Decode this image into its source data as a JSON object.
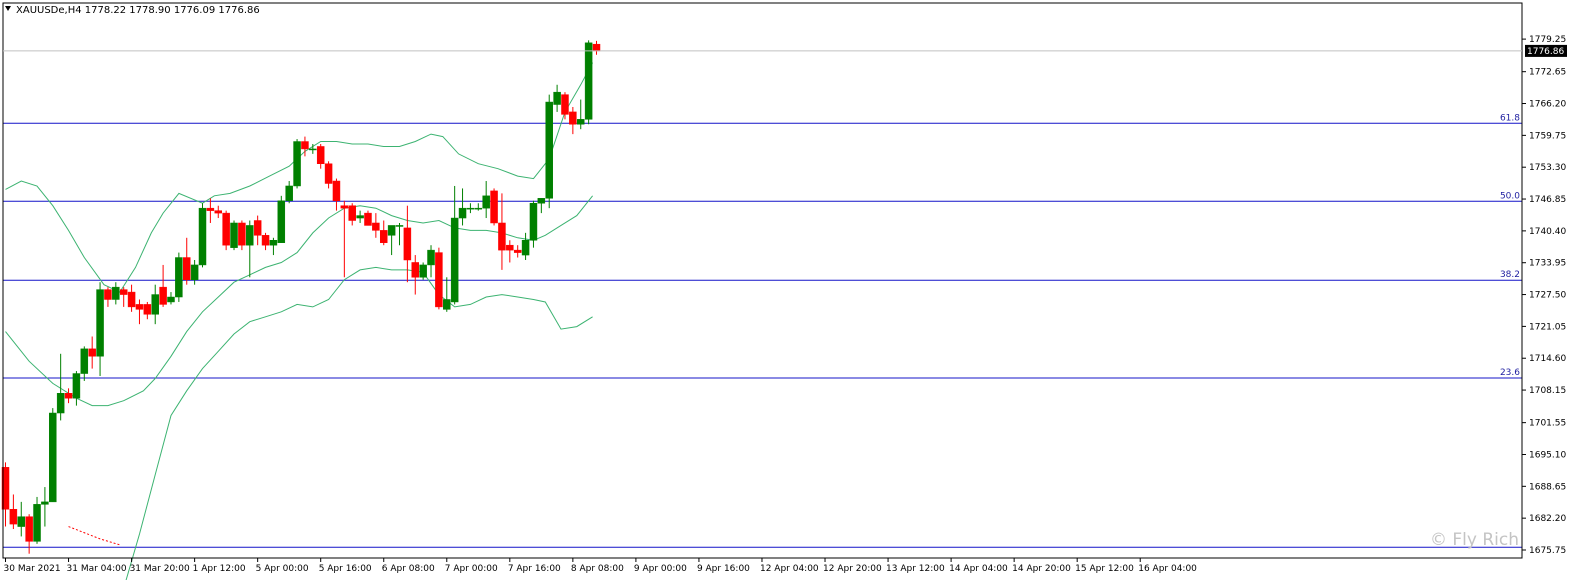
{
  "chart_data": {
    "type": "candlestick",
    "title": "XAUUSDe,H4 1778.22 1778.90 1776.09 1776.86",
    "symbol": "XAUUSDe,H4",
    "ohlc_header": [
      "1778.22",
      "1778.90",
      "1776.09",
      "1776.86"
    ],
    "ylim": [
      1675.75,
      1781.5
    ],
    "y_ticks": [
      "1779.25",
      "1772.65",
      "1766.20",
      "1759.75",
      "1753.30",
      "1746.85",
      "1740.40",
      "1733.95",
      "1727.50",
      "1721.05",
      "1714.60",
      "1708.15",
      "1701.55",
      "1695.10",
      "1688.65",
      "1682.20",
      "1675.75"
    ],
    "x_ticks": [
      "30 Mar 2021",
      "31 Mar 04:00",
      "31 Mar 20:00",
      "1 Apr 12:00",
      "5 Apr 00:00",
      "5 Apr 16:00",
      "6 Apr 08:00",
      "7 Apr 00:00",
      "7 Apr 16:00",
      "8 Apr 08:00",
      "9 Apr 00:00",
      "9 Apr 16:00",
      "12 Apr 04:00",
      "12 Apr 20:00",
      "13 Apr 12:00",
      "14 Apr 04:00",
      "14 Apr 20:00",
      "15 Apr 12:00",
      "16 Apr 04:00"
    ],
    "current_price": "1776.86",
    "fib_levels": [
      {
        "label": "61.8",
        "value": 1762.2
      },
      {
        "label": "50.0",
        "value": 1746.4
      },
      {
        "label": "38.2",
        "value": 1730.4
      },
      {
        "label": "23.6",
        "value": 1710.6
      },
      {
        "label": "",
        "value": 1676.3
      }
    ],
    "candles": [
      [
        1692.5,
        1693.5,
        1680.5,
        1684.0
      ],
      [
        1684.0,
        1687.0,
        1680.0,
        1681.0
      ],
      [
        1680.5,
        1685.5,
        1678.5,
        1682.5
      ],
      [
        1682.5,
        1683.0,
        1675.0,
        1677.5
      ],
      [
        1677.5,
        1686.5,
        1677.0,
        1685.0
      ],
      [
        1685.0,
        1688.5,
        1680.5,
        1685.5
      ],
      [
        1685.5,
        1704.5,
        1685.5,
        1703.5
      ],
      [
        1703.5,
        1715.5,
        1702.0,
        1707.5
      ],
      [
        1707.5,
        1708.5,
        1705.5,
        1706.5
      ],
      [
        1706.5,
        1712.0,
        1705.0,
        1711.5
      ],
      [
        1711.5,
        1717.0,
        1710.0,
        1716.5
      ],
      [
        1716.5,
        1719.0,
        1712.5,
        1715.0
      ],
      [
        1715.0,
        1730.0,
        1711.0,
        1728.5
      ],
      [
        1728.5,
        1729.0,
        1725.0,
        1726.5
      ],
      [
        1726.5,
        1730.0,
        1725.5,
        1729.0
      ],
      [
        1728.5,
        1729.0,
        1725.0,
        1727.5
      ],
      [
        1728.0,
        1729.5,
        1724.0,
        1725.0
      ],
      [
        1725.5,
        1726.5,
        1721.5,
        1724.5
      ],
      [
        1725.5,
        1726.0,
        1722.5,
        1723.5
      ],
      [
        1723.5,
        1729.5,
        1721.5,
        1727.5
      ],
      [
        1729.0,
        1733.5,
        1725.0,
        1725.5
      ],
      [
        1726.0,
        1728.0,
        1725.5,
        1727.0
      ],
      [
        1727.0,
        1736.0,
        1726.0,
        1735.0
      ],
      [
        1735.0,
        1739.0,
        1729.5,
        1730.5
      ],
      [
        1730.5,
        1734.5,
        1729.5,
        1733.5
      ],
      [
        1733.5,
        1746.0,
        1733.0,
        1745.0
      ],
      [
        1745.0,
        1747.0,
        1742.0,
        1744.5
      ],
      [
        1744.5,
        1745.5,
        1743.0,
        1744.0
      ],
      [
        1744.0,
        1744.5,
        1736.5,
        1737.5
      ],
      [
        1737.0,
        1742.5,
        1736.5,
        1742.0
      ],
      [
        1742.0,
        1742.5,
        1736.5,
        1737.5
      ],
      [
        1737.5,
        1742.5,
        1731.0,
        1741.5
      ],
      [
        1742.5,
        1743.5,
        1737.5,
        1739.5
      ],
      [
        1739.5,
        1740.0,
        1736.5,
        1737.5
      ],
      [
        1737.5,
        1739.0,
        1735.5,
        1738.5
      ],
      [
        1738.0,
        1747.5,
        1738.0,
        1746.5
      ],
      [
        1746.5,
        1750.5,
        1746.0,
        1749.5
      ],
      [
        1749.5,
        1759.0,
        1749.0,
        1758.5
      ],
      [
        1758.5,
        1759.5,
        1755.5,
        1757.0
      ],
      [
        1757.0,
        1758.0,
        1756.0,
        1757.0
      ],
      [
        1757.5,
        1758.0,
        1753.0,
        1754.0
      ],
      [
        1754.0,
        1754.5,
        1749.0,
        1750.0
      ],
      [
        1750.5,
        1751.0,
        1744.5,
        1746.5
      ],
      [
        1745.5,
        1746.5,
        1731.0,
        1745.0
      ],
      [
        1745.5,
        1746.0,
        1741.5,
        1742.5
      ],
      [
        1743.0,
        1744.5,
        1742.0,
        1743.5
      ],
      [
        1744.0,
        1744.5,
        1741.5,
        1741.5
      ],
      [
        1742.0,
        1744.0,
        1739.0,
        1740.5
      ],
      [
        1740.5,
        1742.5,
        1737.5,
        1738.0
      ],
      [
        1739.5,
        1741.0,
        1735.5,
        1741.5
      ],
      [
        1741.5,
        1742.0,
        1737.5,
        1741.5
      ],
      [
        1741.0,
        1745.5,
        1730.0,
        1734.5
      ],
      [
        1734.0,
        1735.5,
        1727.5,
        1731.0
      ],
      [
        1731.0,
        1734.0,
        1730.5,
        1733.5
      ],
      [
        1733.5,
        1737.5,
        1731.0,
        1736.5
      ],
      [
        1736.0,
        1737.0,
        1724.5,
        1725.0
      ],
      [
        1724.5,
        1731.0,
        1724.0,
        1726.5
      ],
      [
        1726.0,
        1749.5,
        1725.5,
        1743.0
      ],
      [
        1743.0,
        1749.0,
        1741.5,
        1745.0
      ],
      [
        1745.0,
        1746.0,
        1744.0,
        1745.0
      ],
      [
        1745.0,
        1746.0,
        1744.5,
        1745.0
      ],
      [
        1745.0,
        1750.5,
        1743.0,
        1747.5
      ],
      [
        1748.5,
        1749.0,
        1741.5,
        1742.0
      ],
      [
        1742.0,
        1748.0,
        1732.5,
        1736.5
      ],
      [
        1737.5,
        1738.5,
        1734.0,
        1736.5
      ],
      [
        1736.5,
        1737.5,
        1735.0,
        1736.0
      ],
      [
        1735.5,
        1740.0,
        1734.5,
        1738.5
      ],
      [
        1738.5,
        1746.5,
        1737.0,
        1746.0
      ],
      [
        1746.0,
        1747.0,
        1744.0,
        1747.0
      ],
      [
        1747.0,
        1768.0,
        1745.0,
        1766.5
      ],
      [
        1766.0,
        1770.0,
        1764.5,
        1768.5
      ],
      [
        1768.0,
        1768.5,
        1763.0,
        1764.0
      ],
      [
        1764.5,
        1765.5,
        1760.0,
        1762.0
      ],
      [
        1762.0,
        1767.0,
        1761.0,
        1763.0
      ],
      [
        1763.0,
        1779.0,
        1762.0,
        1778.5
      ],
      [
        1778.22,
        1778.9,
        1776.09,
        1776.86
      ]
    ],
    "bands": {
      "upper": [
        [
          0,
          1748.8
        ],
        [
          4,
          1750.5
        ],
        [
          8,
          1749.5
        ],
        [
          12,
          1745.5
        ],
        [
          16,
          1740.5
        ],
        [
          20,
          1735.0
        ],
        [
          25,
          1729.5
        ],
        [
          29,
          1728.0
        ],
        [
          33,
          1733.0
        ],
        [
          37,
          1740.0
        ],
        [
          40,
          1744.0
        ],
        [
          44,
          1748.0
        ],
        [
          50,
          1746.0
        ],
        [
          53,
          1747.5
        ],
        [
          57,
          1748.0
        ],
        [
          62,
          1749.5
        ],
        [
          67,
          1751.5
        ],
        [
          72,
          1753.5
        ],
        [
          76,
          1756.5
        ],
        [
          80,
          1758.5
        ],
        [
          84,
          1758.5
        ],
        [
          88,
          1758.0
        ],
        [
          92,
          1758.0
        ],
        [
          96,
          1757.5
        ],
        [
          100,
          1757.5
        ],
        [
          104,
          1758.5
        ],
        [
          108,
          1760.0
        ],
        [
          111,
          1759.5
        ],
        [
          115,
          1756.0
        ],
        [
          120,
          1754.0
        ],
        [
          125,
          1753.0
        ],
        [
          130,
          1751.5
        ],
        [
          134,
          1751.0
        ],
        [
          138,
          1755.0
        ],
        [
          142,
          1764.5
        ],
        [
          146,
          1770.0
        ],
        [
          149,
          1774.5
        ]
      ],
      "middle": [
        [
          0,
          1720.0
        ],
        [
          6,
          1714.0
        ],
        [
          12,
          1709.5
        ],
        [
          18,
          1706.5
        ],
        [
          22,
          1705.0
        ],
        [
          26,
          1705.0
        ],
        [
          30,
          1706.0
        ],
        [
          35,
          1708.0
        ],
        [
          38,
          1710.5
        ],
        [
          42,
          1715.0
        ],
        [
          46,
          1720.0
        ],
        [
          50,
          1724.0
        ],
        [
          54,
          1727.0
        ],
        [
          58,
          1730.0
        ],
        [
          62,
          1731.5
        ],
        [
          66,
          1733.0
        ],
        [
          70,
          1734.0
        ],
        [
          74,
          1736.0
        ],
        [
          78,
          1740.0
        ],
        [
          82,
          1743.0
        ],
        [
          86,
          1745.0
        ],
        [
          90,
          1745.5
        ],
        [
          94,
          1745.0
        ],
        [
          98,
          1743.5
        ],
        [
          102,
          1742.5
        ],
        [
          106,
          1742.0
        ],
        [
          110,
          1742.5
        ],
        [
          114,
          1741.0
        ],
        [
          118,
          1740.5
        ],
        [
          122,
          1740.5
        ],
        [
          126,
          1740.0
        ],
        [
          130,
          1739.0
        ],
        [
          134,
          1738.5
        ],
        [
          137,
          1739.5
        ],
        [
          141,
          1741.5
        ],
        [
          145,
          1743.5
        ],
        [
          149,
          1747.5
        ]
      ],
      "lower": [
        [
          30,
          1668.0
        ],
        [
          34,
          1679.0
        ],
        [
          38,
          1691.0
        ],
        [
          42,
          1703.0
        ],
        [
          46,
          1708.0
        ],
        [
          50,
          1712.5
        ],
        [
          54,
          1716.0
        ],
        [
          58,
          1719.5
        ],
        [
          62,
          1722.0
        ],
        [
          66,
          1723.0
        ],
        [
          70,
          1724.0
        ],
        [
          74,
          1725.5
        ],
        [
          78,
          1725.0
        ],
        [
          82,
          1726.5
        ],
        [
          86,
          1730.5
        ],
        [
          90,
          1732.5
        ],
        [
          94,
          1733.0
        ],
        [
          98,
          1732.5
        ],
        [
          102,
          1732.5
        ],
        [
          106,
          1732.0
        ],
        [
          110,
          1727.5
        ],
        [
          114,
          1725.0
        ],
        [
          118,
          1725.5
        ],
        [
          122,
          1727.0
        ],
        [
          126,
          1727.5
        ],
        [
          130,
          1727.0
        ],
        [
          134,
          1726.5
        ],
        [
          137,
          1726.0
        ],
        [
          141,
          1720.5
        ],
        [
          145,
          1721.0
        ],
        [
          149,
          1723.0
        ]
      ]
    },
    "grid": false,
    "legend": "none"
  },
  "watermark": "© Fly Rich",
  "colors": {
    "bull": "#008000",
    "bear": "#ff0000",
    "band": "#3cb371",
    "fib": "#1414c8",
    "fib_label": "#1e1ea0",
    "axis": "#000000",
    "price_line": "#c0c0c0",
    "dotted": "#ff0000"
  }
}
